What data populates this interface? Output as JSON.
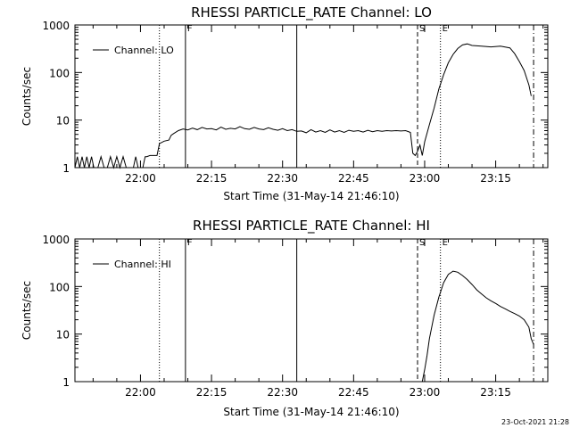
{
  "footer_stamp": "23-Oct-2021 21:28",
  "chart_data": [
    {
      "type": "line",
      "title": "RHESSI PARTICLE_RATE Channel: LO",
      "xlabel": "Start Time (31-May-14 21:46:10)",
      "ylabel": "Counts/sec",
      "y_scale": "log",
      "ylim": [
        1,
        1000
      ],
      "xlim": [
        "21:46:10",
        "23:26:00"
      ],
      "x_ticks": [
        "22:00",
        "22:15",
        "22:30",
        "22:45",
        "23:00",
        "23:15"
      ],
      "y_ticks": [
        "1",
        "10",
        "100",
        "1000"
      ],
      "legend": {
        "label": "Channel: LO",
        "placement": "top-left"
      },
      "markers": [
        {
          "label": "",
          "time": "22:04:00",
          "style": "dotted"
        },
        {
          "label": "F",
          "time": "22:09:30",
          "style": "solid"
        },
        {
          "label": "",
          "time": "22:33:00",
          "style": "solid"
        },
        {
          "label": "S",
          "time": "22:58:30",
          "style": "dashed"
        },
        {
          "label": "E",
          "time": "23:03:20",
          "style": "dotted"
        },
        {
          "label": "",
          "time": "23:23:00",
          "style": "dashdot"
        }
      ],
      "series": [
        {
          "name": "Channel: LO",
          "points": [
            [
              "21:46:10",
              1
            ],
            [
              "21:46:40",
              1.7
            ],
            [
              "21:47:10",
              1
            ],
            [
              "21:47:40",
              1.7
            ],
            [
              "21:48:10",
              1
            ],
            [
              "21:48:40",
              1.7
            ],
            [
              "21:49:10",
              1
            ],
            [
              "21:49:40",
              1.7
            ],
            [
              "21:50:10",
              1
            ],
            [
              "21:51:00",
              1
            ],
            [
              "21:51:40",
              1.7
            ],
            [
              "21:52:20",
              1
            ],
            [
              "21:53:00",
              1
            ],
            [
              "21:53:40",
              1.7
            ],
            [
              "21:54:20",
              1
            ],
            [
              "21:55:00",
              1.7
            ],
            [
              "21:55:40",
              1
            ],
            [
              "21:56:20",
              1.7
            ],
            [
              "21:57:00",
              1
            ],
            [
              "21:58:30",
              1
            ],
            [
              "21:59:00",
              1.7
            ],
            [
              "21:59:30",
              1
            ],
            [
              "22:00:30",
              1
            ],
            [
              "22:01:00",
              1.7
            ],
            [
              "22:01:20",
              1.7
            ],
            [
              "22:02:00",
              1.8
            ],
            [
              "22:03:30",
              1.8
            ],
            [
              "22:04:00",
              3.2
            ],
            [
              "22:05:00",
              3.6
            ],
            [
              "22:06:00",
              3.8
            ],
            [
              "22:06:30",
              4.8
            ],
            [
              "22:07:00",
              5.2
            ],
            [
              "22:08:00",
              6.0
            ],
            [
              "22:09:00",
              6.5
            ],
            [
              "22:10:00",
              6.2
            ],
            [
              "22:11:00",
              6.8
            ],
            [
              "22:12:00",
              6.3
            ],
            [
              "22:13:00",
              7.0
            ],
            [
              "22:14:00",
              6.5
            ],
            [
              "22:15:00",
              6.6
            ],
            [
              "22:16:00",
              6.2
            ],
            [
              "22:17:00",
              7.1
            ],
            [
              "22:18:00",
              6.4
            ],
            [
              "22:19:00",
              6.7
            ],
            [
              "22:20:00",
              6.5
            ],
            [
              "22:21:00",
              7.3
            ],
            [
              "22:22:00",
              6.6
            ],
            [
              "22:23:00",
              6.4
            ],
            [
              "22:24:00",
              7.0
            ],
            [
              "22:25:00",
              6.5
            ],
            [
              "22:26:00",
              6.3
            ],
            [
              "22:27:00",
              6.9
            ],
            [
              "22:28:00",
              6.4
            ],
            [
              "22:29:00",
              6.1
            ],
            [
              "22:30:00",
              6.6
            ],
            [
              "22:31:00",
              6.0
            ],
            [
              "22:32:00",
              6.3
            ],
            [
              "22:33:00",
              5.8
            ],
            [
              "22:34:00",
              5.9
            ],
            [
              "22:35:00",
              5.4
            ],
            [
              "22:36:00",
              6.3
            ],
            [
              "22:37:00",
              5.6
            ],
            [
              "22:38:00",
              6.0
            ],
            [
              "22:39:00",
              5.5
            ],
            [
              "22:40:00",
              6.2
            ],
            [
              "22:41:00",
              5.6
            ],
            [
              "22:42:00",
              6.0
            ],
            [
              "22:43:00",
              5.5
            ],
            [
              "22:44:00",
              6.1
            ],
            [
              "22:45:00",
              5.8
            ],
            [
              "22:46:00",
              6.0
            ],
            [
              "22:47:00",
              5.6
            ],
            [
              "22:48:00",
              6.1
            ],
            [
              "22:49:00",
              5.7
            ],
            [
              "22:50:00",
              6.0
            ],
            [
              "22:51:00",
              5.8
            ],
            [
              "22:52:00",
              6.0
            ],
            [
              "22:53:00",
              5.9
            ],
            [
              "22:54:00",
              6.0
            ],
            [
              "22:55:00",
              5.9
            ],
            [
              "22:56:00",
              6.0
            ],
            [
              "22:57:00",
              5.5
            ],
            [
              "22:57:30",
              2.0
            ],
            [
              "22:58:00",
              1.8
            ],
            [
              "22:58:30",
              2.2
            ],
            [
              "22:59:00",
              3.0
            ],
            [
              "22:59:30",
              1.8
            ],
            [
              "23:00:00",
              3.5
            ],
            [
              "23:01:00",
              8
            ],
            [
              "23:02:00",
              18
            ],
            [
              "23:03:00",
              45
            ],
            [
              "23:04:00",
              90
            ],
            [
              "23:05:00",
              160
            ],
            [
              "23:06:00",
              240
            ],
            [
              "23:07:00",
              320
            ],
            [
              "23:08:00",
              380
            ],
            [
              "23:09:00",
              400
            ],
            [
              "23:10:00",
              370
            ],
            [
              "23:12:00",
              360
            ],
            [
              "23:14:00",
              345
            ],
            [
              "23:16:00",
              360
            ],
            [
              "23:18:00",
              330
            ],
            [
              "23:19:00",
              250
            ],
            [
              "23:20:00",
              170
            ],
            [
              "23:21:00",
              110
            ],
            [
              "23:22:00",
              55
            ],
            [
              "23:22:30",
              32
            ]
          ]
        }
      ]
    },
    {
      "type": "line",
      "title": "RHESSI PARTICLE_RATE Channel: HI",
      "xlabel": "Start Time (31-May-14 21:46:10)",
      "ylabel": "Counts/sec",
      "y_scale": "log",
      "ylim": [
        1,
        1000
      ],
      "xlim": [
        "21:46:10",
        "23:26:00"
      ],
      "x_ticks": [
        "22:00",
        "22:15",
        "22:30",
        "22:45",
        "23:00",
        "23:15"
      ],
      "y_ticks": [
        "1",
        "10",
        "100",
        "1000"
      ],
      "legend": {
        "label": "Channel: HI",
        "placement": "top-left"
      },
      "markers": [
        {
          "label": "",
          "time": "22:04:00",
          "style": "dotted"
        },
        {
          "label": "F",
          "time": "22:09:30",
          "style": "solid"
        },
        {
          "label": "",
          "time": "22:33:00",
          "style": "solid"
        },
        {
          "label": "S",
          "time": "22:58:30",
          "style": "dashed"
        },
        {
          "label": "E",
          "time": "23:03:20",
          "style": "dotted"
        },
        {
          "label": "",
          "time": "23:23:00",
          "style": "dashdot"
        }
      ],
      "series": [
        {
          "name": "Channel: HI",
          "points": [
            [
              "22:59:30",
              1
            ],
            [
              "23:00:00",
              1.8
            ],
            [
              "23:00:30",
              3.5
            ],
            [
              "23:01:00",
              8
            ],
            [
              "23:02:00",
              25
            ],
            [
              "23:03:00",
              60
            ],
            [
              "23:04:00",
              120
            ],
            [
              "23:05:00",
              180
            ],
            [
              "23:06:00",
              210
            ],
            [
              "23:07:00",
              200
            ],
            [
              "23:08:00",
              170
            ],
            [
              "23:09:00",
              140
            ],
            [
              "23:10:00",
              110
            ],
            [
              "23:11:00",
              85
            ],
            [
              "23:12:00",
              70
            ],
            [
              "23:13:00",
              58
            ],
            [
              "23:14:00",
              50
            ],
            [
              "23:15:00",
              44
            ],
            [
              "23:16:00",
              38
            ],
            [
              "23:17:00",
              34
            ],
            [
              "23:18:00",
              30
            ],
            [
              "23:19:00",
              27
            ],
            [
              "23:20:00",
              24
            ],
            [
              "23:21:00",
              20
            ],
            [
              "23:22:00",
              14
            ],
            [
              "23:22:30",
              8
            ],
            [
              "23:23:00",
              6
            ]
          ]
        }
      ]
    }
  ]
}
